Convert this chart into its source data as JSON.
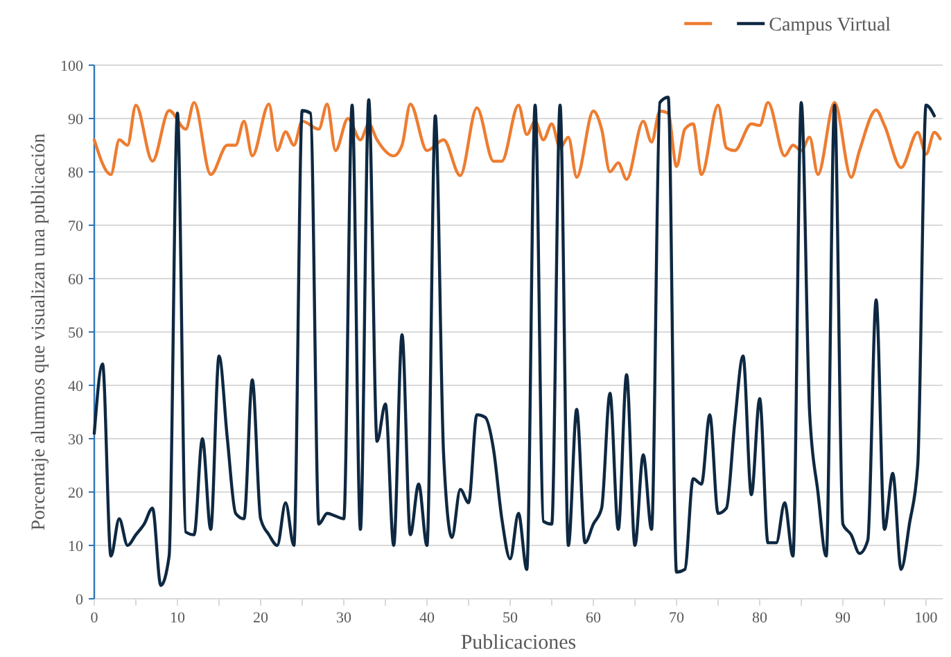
{
  "chart_data": {
    "type": "line",
    "xlabel": "Publicaciones",
    "ylabel": "Porcentaje alumnos que visualizan una publicación",
    "xlim": [
      0,
      102
    ],
    "ylim": [
      0,
      100
    ],
    "xticks": [
      0,
      {
        "value": 5,
        "label": null
      },
      10,
      {
        "value": 15,
        "label": null
      },
      20,
      {
        "value": 25,
        "label": null
      },
      30,
      {
        "value": 35,
        "label": null
      },
      40,
      {
        "value": 45,
        "label": null
      },
      50,
      {
        "value": 55,
        "label": null
      },
      60,
      {
        "value": 65,
        "label": null
      },
      70,
      {
        "value": 75,
        "label": null
      },
      80,
      {
        "value": 85,
        "label": null
      },
      90,
      {
        "value": 95,
        "label": null
      },
      100
    ],
    "yticks": [
      0,
      10,
      20,
      30,
      40,
      50,
      60,
      70,
      80,
      90,
      100
    ],
    "grid": "y",
    "legend": "top right",
    "marker": "none",
    "line_style": "solid",
    "series": [
      {
        "color": "#ed7d31",
        "x": [
          0,
          2,
          3,
          4,
          5,
          7,
          9,
          11,
          12,
          14,
          16,
          17,
          18,
          19,
          21,
          22,
          23,
          24,
          25,
          27,
          28,
          29,
          30.5,
          32,
          33,
          34,
          36,
          37,
          38,
          40,
          42,
          44,
          46,
          48,
          49,
          51,
          52,
          53,
          54,
          55,
          56,
          57,
          58,
          60,
          61,
          62,
          63,
          64,
          66,
          67,
          68,
          69,
          70,
          71,
          72,
          73,
          75,
          76,
          77,
          79,
          80,
          81,
          83,
          84,
          85,
          86,
          87,
          89,
          91,
          92,
          94,
          95,
          97,
          99,
          100,
          101,
          101.7
        ],
        "values": [
          86,
          79.5,
          86,
          85,
          92.5,
          82,
          91.5,
          88,
          93,
          79.5,
          85,
          85,
          89.5,
          83,
          92.7,
          84,
          87.5,
          85,
          89.5,
          88,
          92.7,
          84,
          90,
          86,
          89,
          86,
          83,
          85,
          92.7,
          84,
          86,
          79.3,
          92,
          82,
          82,
          92.5,
          87,
          89.5,
          86,
          89,
          84.5,
          86.5,
          79,
          91.4,
          88,
          80,
          81.7,
          78.6,
          89.5,
          85.6,
          91.4,
          91,
          81,
          88,
          89,
          79.5,
          92.5,
          84.5,
          84,
          89,
          88.7,
          93,
          83,
          85,
          84,
          86.5,
          79.5,
          93,
          79,
          84,
          91.6,
          88.7,
          80.8,
          87.4,
          83.3,
          87.4,
          86.2
        ]
      },
      {
        "name": "Campus Virtual",
        "color": "#0e2841",
        "x": [
          0,
          1,
          2,
          3,
          4,
          5,
          6,
          7,
          8,
          9,
          10,
          11,
          12,
          13,
          14,
          15,
          16,
          17,
          18,
          19,
          20,
          21,
          22,
          23,
          24,
          25,
          26,
          27,
          28,
          29,
          30,
          31,
          32,
          33,
          34,
          35,
          36,
          37,
          38,
          39,
          40,
          41,
          42,
          43,
          44,
          45,
          46,
          47,
          48,
          49,
          50,
          51,
          52,
          53,
          54,
          55,
          56,
          57,
          58,
          59,
          60,
          61,
          62,
          63,
          64,
          65,
          66,
          67,
          68,
          69,
          70,
          71,
          72,
          73,
          74,
          75,
          76,
          77,
          78,
          79,
          80,
          81,
          82,
          83,
          84,
          85,
          86,
          87,
          88,
          89,
          90,
          91,
          92,
          93,
          94,
          95,
          96,
          97,
          98,
          99,
          100,
          101
        ],
        "values": [
          31,
          44,
          8,
          15,
          10,
          12,
          14,
          17,
          2.5,
          8,
          91,
          12.5,
          12,
          30,
          13,
          45.5,
          30,
          16,
          15,
          41,
          15,
          12,
          10,
          18,
          10,
          91.5,
          91,
          14,
          16,
          15.5,
          15,
          92.5,
          13,
          93.5,
          29.5,
          36.5,
          10,
          49.5,
          12,
          21.5,
          10,
          90.5,
          27,
          11.5,
          20.5,
          18,
          34.5,
          34,
          28,
          15,
          7.5,
          16,
          5.5,
          92.5,
          14.5,
          14,
          92.5,
          10,
          35.5,
          10.5,
          14,
          17,
          38.5,
          13,
          42,
          10,
          27,
          13,
          93,
          94,
          5,
          5.5,
          22.5,
          21.5,
          34.5,
          16,
          17,
          33,
          45.5,
          19.5,
          37.5,
          10.5,
          10.5,
          18,
          8,
          93,
          35,
          20,
          8,
          92.5,
          14,
          12,
          8.5,
          11,
          56,
          13,
          23.5,
          5.5,
          14,
          25,
          92.5,
          90.5
        ]
      }
    ]
  }
}
